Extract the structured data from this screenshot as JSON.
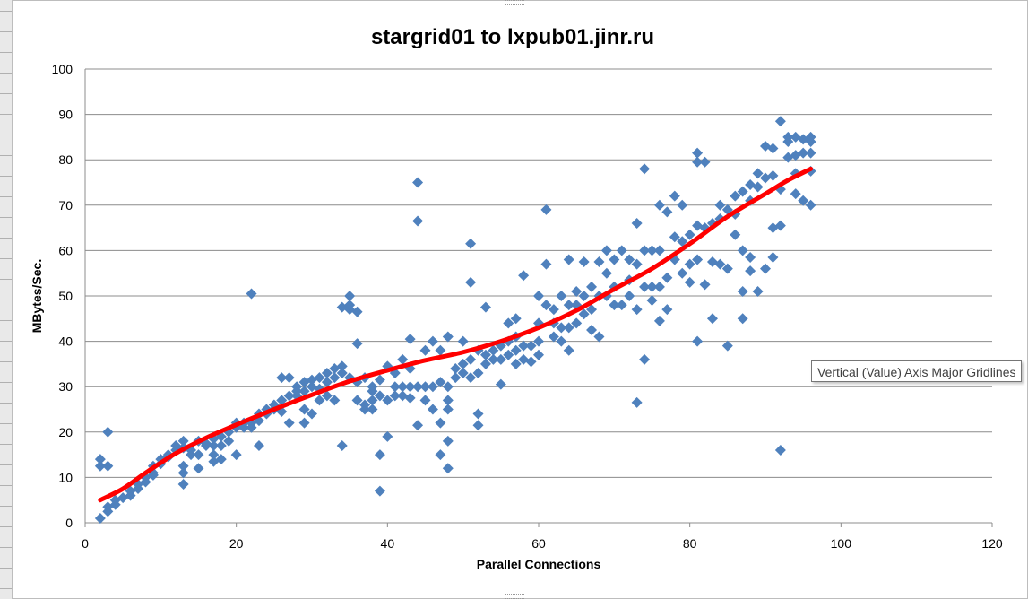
{
  "chart_data": {
    "type": "scatter",
    "title": "stargrid01 to lxpub01.jinr.ru",
    "xlabel": "Parallel Connections",
    "ylabel": "MBytes/Sec.",
    "xlim": [
      0,
      120
    ],
    "ylim": [
      0,
      100
    ],
    "xticks": [
      "0",
      "20",
      "40",
      "60",
      "80",
      "100",
      "120"
    ],
    "yticks": [
      "0",
      "10",
      "20",
      "30",
      "40",
      "50",
      "60",
      "70",
      "80",
      "90",
      "100"
    ],
    "grid": "horizontal major gridlines",
    "legend": "none",
    "marker_color": "#4f81bd",
    "trend_color": "#ff0000",
    "series": [
      {
        "marker": "diamond",
        "points": [
          [
            2,
            1
          ],
          [
            2,
            12.5
          ],
          [
            2,
            14
          ],
          [
            3,
            12.5
          ],
          [
            3,
            20
          ],
          [
            3,
            2.5
          ],
          [
            3,
            3.5
          ],
          [
            4,
            4
          ],
          [
            4,
            5
          ],
          [
            5,
            5.5
          ],
          [
            6,
            6
          ],
          [
            6,
            7
          ],
          [
            7,
            7.5
          ],
          [
            7,
            8.5
          ],
          [
            8,
            9
          ],
          [
            8,
            10
          ],
          [
            9,
            10.5
          ],
          [
            9,
            11
          ],
          [
            9,
            12.5
          ],
          [
            10,
            13
          ],
          [
            10,
            14
          ],
          [
            11,
            14.5
          ],
          [
            11,
            15
          ],
          [
            12,
            16
          ],
          [
            12,
            17
          ],
          [
            13,
            8.5
          ],
          [
            13,
            11
          ],
          [
            13,
            12.5
          ],
          [
            13,
            16.5
          ],
          [
            13,
            18
          ],
          [
            14,
            15
          ],
          [
            14,
            16
          ],
          [
            15,
            12
          ],
          [
            15,
            15
          ],
          [
            15,
            18
          ],
          [
            16,
            17
          ],
          [
            16,
            17.5
          ],
          [
            17,
            13.5
          ],
          [
            17,
            15
          ],
          [
            17,
            17
          ],
          [
            17,
            18.5
          ],
          [
            18,
            14
          ],
          [
            18,
            17
          ],
          [
            18,
            19
          ],
          [
            19,
            18
          ],
          [
            19,
            20
          ],
          [
            20,
            15
          ],
          [
            20,
            21
          ],
          [
            20,
            22
          ],
          [
            21,
            21
          ],
          [
            21,
            22
          ],
          [
            22,
            21
          ],
          [
            22,
            22
          ],
          [
            22,
            50.5
          ],
          [
            23,
            17
          ],
          [
            23,
            22.5
          ],
          [
            23,
            24
          ],
          [
            24,
            24
          ],
          [
            24,
            25
          ],
          [
            25,
            25
          ],
          [
            25,
            26
          ],
          [
            26,
            24.5
          ],
          [
            26,
            27
          ],
          [
            26,
            32
          ],
          [
            27,
            22
          ],
          [
            27,
            28
          ],
          [
            27,
            32
          ],
          [
            28,
            28
          ],
          [
            28,
            29
          ],
          [
            28,
            30
          ],
          [
            29,
            22
          ],
          [
            29,
            25
          ],
          [
            29,
            29
          ],
          [
            29,
            31
          ],
          [
            30,
            24
          ],
          [
            30,
            30
          ],
          [
            30,
            31.5
          ],
          [
            31,
            27
          ],
          [
            31,
            29.5
          ],
          [
            31,
            32
          ],
          [
            32,
            28
          ],
          [
            32,
            31
          ],
          [
            32,
            33
          ],
          [
            33,
            27
          ],
          [
            33,
            32
          ],
          [
            33,
            34
          ],
          [
            34,
            17
          ],
          [
            34,
            33
          ],
          [
            34,
            34.5
          ],
          [
            34,
            47.5
          ],
          [
            35,
            32
          ],
          [
            35,
            47
          ],
          [
            35,
            48
          ],
          [
            35,
            50
          ],
          [
            36,
            27
          ],
          [
            36,
            31
          ],
          [
            36,
            39.5
          ],
          [
            36,
            46.5
          ],
          [
            37,
            25
          ],
          [
            37,
            26
          ],
          [
            37,
            32
          ],
          [
            38,
            25
          ],
          [
            38,
            27
          ],
          [
            38,
            29
          ],
          [
            38,
            30
          ],
          [
            39,
            7
          ],
          [
            39,
            15
          ],
          [
            39,
            28
          ],
          [
            39,
            31.5
          ],
          [
            40,
            19
          ],
          [
            40,
            27
          ],
          [
            40,
            34.5
          ],
          [
            41,
            28
          ],
          [
            41,
            30
          ],
          [
            41,
            33
          ],
          [
            42,
            28
          ],
          [
            42,
            30
          ],
          [
            42,
            36
          ],
          [
            43,
            27.5
          ],
          [
            43,
            30
          ],
          [
            43,
            34
          ],
          [
            43,
            40.5
          ],
          [
            44,
            21.5
          ],
          [
            44,
            30
          ],
          [
            44,
            66.5
          ],
          [
            44,
            75
          ],
          [
            45,
            27
          ],
          [
            45,
            30
          ],
          [
            45,
            38
          ],
          [
            46,
            25
          ],
          [
            46,
            30
          ],
          [
            46,
            40
          ],
          [
            47,
            15
          ],
          [
            47,
            22
          ],
          [
            47,
            31
          ],
          [
            47,
            38
          ],
          [
            48,
            12
          ],
          [
            48,
            18
          ],
          [
            48,
            25
          ],
          [
            48,
            27
          ],
          [
            48,
            30
          ],
          [
            48,
            41
          ],
          [
            49,
            32
          ],
          [
            49,
            34
          ],
          [
            50,
            33
          ],
          [
            50,
            35
          ],
          [
            50,
            40
          ],
          [
            51,
            32
          ],
          [
            51,
            36
          ],
          [
            51,
            53
          ],
          [
            51,
            61.5
          ],
          [
            52,
            21.5
          ],
          [
            52,
            24
          ],
          [
            52,
            33
          ],
          [
            52,
            38
          ],
          [
            53,
            35
          ],
          [
            53,
            37
          ],
          [
            53,
            47.5
          ],
          [
            54,
            36
          ],
          [
            54,
            38
          ],
          [
            55,
            30.5
          ],
          [
            55,
            36
          ],
          [
            55,
            39
          ],
          [
            56,
            37
          ],
          [
            56,
            40
          ],
          [
            56,
            44
          ],
          [
            57,
            35
          ],
          [
            57,
            38
          ],
          [
            57,
            41
          ],
          [
            57,
            45
          ],
          [
            58,
            36
          ],
          [
            58,
            39
          ],
          [
            58,
            54.5
          ],
          [
            59,
            35.5
          ],
          [
            59,
            39
          ],
          [
            60,
            37
          ],
          [
            60,
            40
          ],
          [
            60,
            44
          ],
          [
            60,
            50
          ],
          [
            61,
            48
          ],
          [
            61,
            57
          ],
          [
            61,
            69
          ],
          [
            62,
            41
          ],
          [
            62,
            44
          ],
          [
            62,
            47
          ],
          [
            63,
            40
          ],
          [
            63,
            43
          ],
          [
            63,
            50
          ],
          [
            64,
            38
          ],
          [
            64,
            43
          ],
          [
            64,
            48
          ],
          [
            64,
            58
          ],
          [
            65,
            44
          ],
          [
            65,
            48
          ],
          [
            65,
            51
          ],
          [
            66,
            46
          ],
          [
            66,
            50
          ],
          [
            66,
            57.5
          ],
          [
            67,
            42.5
          ],
          [
            67,
            47
          ],
          [
            67,
            52
          ],
          [
            68,
            41
          ],
          [
            68,
            50
          ],
          [
            68,
            57.5
          ],
          [
            69,
            50
          ],
          [
            69,
            55
          ],
          [
            69,
            60
          ],
          [
            70,
            48
          ],
          [
            70,
            52
          ],
          [
            70,
            58
          ],
          [
            71,
            48
          ],
          [
            71,
            60
          ],
          [
            72,
            50
          ],
          [
            72,
            53.5
          ],
          [
            72,
            58
          ],
          [
            73,
            26.5
          ],
          [
            73,
            47
          ],
          [
            73,
            57
          ],
          [
            73,
            66
          ],
          [
            74,
            36
          ],
          [
            74,
            52
          ],
          [
            74,
            60
          ],
          [
            74,
            78
          ],
          [
            75,
            49
          ],
          [
            75,
            52
          ],
          [
            75,
            60
          ],
          [
            76,
            44.5
          ],
          [
            76,
            52
          ],
          [
            76,
            60
          ],
          [
            76,
            70
          ],
          [
            77,
            47
          ],
          [
            77,
            54
          ],
          [
            77,
            68.5
          ],
          [
            78,
            58
          ],
          [
            78,
            63
          ],
          [
            78,
            72
          ],
          [
            79,
            55
          ],
          [
            79,
            62
          ],
          [
            79,
            70
          ],
          [
            80,
            53
          ],
          [
            80,
            57
          ],
          [
            80,
            63.5
          ],
          [
            81,
            40
          ],
          [
            81,
            58
          ],
          [
            81,
            65.5
          ],
          [
            81,
            79.5
          ],
          [
            81,
            81.5
          ],
          [
            82,
            52.5
          ],
          [
            82,
            65
          ],
          [
            82,
            79.5
          ],
          [
            83,
            45
          ],
          [
            83,
            57.5
          ],
          [
            83,
            66
          ],
          [
            84,
            57
          ],
          [
            84,
            67
          ],
          [
            84,
            70
          ],
          [
            85,
            39
          ],
          [
            85,
            56
          ],
          [
            85,
            69
          ],
          [
            86,
            63.5
          ],
          [
            86,
            68
          ],
          [
            86,
            72
          ],
          [
            87,
            45
          ],
          [
            87,
            51
          ],
          [
            87,
            60
          ],
          [
            87,
            73
          ],
          [
            88,
            55.5
          ],
          [
            88,
            58.5
          ],
          [
            88,
            71
          ],
          [
            88,
            74.5
          ],
          [
            89,
            51
          ],
          [
            89,
            74
          ],
          [
            89,
            77
          ],
          [
            90,
            56
          ],
          [
            90,
            76
          ],
          [
            90,
            83
          ],
          [
            91,
            58.5
          ],
          [
            91,
            65
          ],
          [
            91,
            76.5
          ],
          [
            91,
            82.5
          ],
          [
            92,
            16
          ],
          [
            92,
            65.5
          ],
          [
            92,
            73.5
          ],
          [
            92,
            88.5
          ],
          [
            93,
            80.5
          ],
          [
            93,
            84
          ],
          [
            93,
            85
          ],
          [
            94,
            72.5
          ],
          [
            94,
            77
          ],
          [
            94,
            81
          ],
          [
            94,
            85
          ],
          [
            95,
            71
          ],
          [
            95,
            81.5
          ],
          [
            95,
            84.5
          ],
          [
            96,
            70
          ],
          [
            96,
            77.5
          ],
          [
            96,
            81.5
          ],
          [
            96,
            84
          ],
          [
            96,
            85
          ]
        ]
      }
    ],
    "trendline": {
      "type": "polynomial",
      "points": [
        [
          2,
          5
        ],
        [
          5,
          7.5
        ],
        [
          8,
          11
        ],
        [
          12,
          15.3
        ],
        [
          16,
          18.7
        ],
        [
          20,
          21.6
        ],
        [
          25,
          25
        ],
        [
          30,
          28.2
        ],
        [
          35,
          31.2
        ],
        [
          40,
          33.6
        ],
        [
          45,
          35.8
        ],
        [
          50,
          37.6
        ],
        [
          55,
          40
        ],
        [
          60,
          43
        ],
        [
          65,
          46.8
        ],
        [
          70,
          51.5
        ],
        [
          75,
          56
        ],
        [
          80,
          61.5
        ],
        [
          85,
          67.5
        ],
        [
          90,
          72.5
        ],
        [
          93,
          75.5
        ],
        [
          96,
          78
        ]
      ]
    }
  },
  "tooltip": {
    "text": "Vertical (Value) Axis Major Gridlines"
  }
}
